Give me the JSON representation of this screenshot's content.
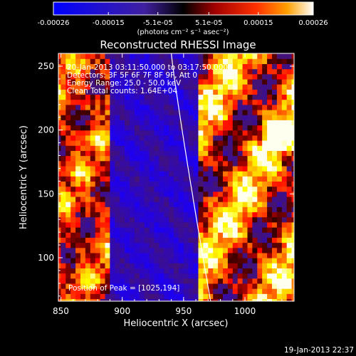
{
  "chart_data": {
    "type": "heatmap",
    "title": "Reconstructed RHESSI Image",
    "xlabel": "Heliocentric X (arcsec)",
    "ylabel": "Heliocentric Y (arcsec)",
    "xlim": [
      848,
      1040
    ],
    "ylim": [
      66,
      260
    ],
    "x_ticks": [
      "850",
      "900",
      "950",
      "1000"
    ],
    "x_tick_values": [
      850,
      900,
      950,
      1000
    ],
    "y_ticks": [
      "100",
      "150",
      "200",
      "250"
    ],
    "y_tick_values": [
      100,
      150,
      200,
      250
    ],
    "colorbar": {
      "min": -0.00026,
      "max": 0.00026,
      "tick_labels": [
        "-0.00026",
        "-0.00015",
        "-5.1e-05",
        "5.1e-05",
        "0.00015",
        "0.00026"
      ],
      "tick_values": [
        -0.00026,
        -0.00015,
        -5.1e-05,
        5.1e-05,
        0.00015,
        0.00026
      ],
      "units_label": "(photons cm⁻² s⁻¹ asec⁻²)"
    },
    "annotations": [
      "20-Jan-2013 03:11:50.000 to 03:17:50.000",
      "Detectors: 3F 5F 6F 7F 8F 9F, Att 0",
      "Energy Range: 25.0 - 50.0 keV",
      "Clean    Total counts: 1.64E+04"
    ],
    "peak_label": "Position of Peak = [1025,194]",
    "peak": [
      1025,
      194
    ],
    "limb_x_range": [
      940,
      972
    ],
    "colors": {
      "negative": "#0000ff",
      "zero": "#000000",
      "positive_mid": "#ff0000",
      "positive_high": "#ffff00",
      "max": "#ffffff"
    }
  },
  "footer_timestamp": "19-Jan-2013 22:37"
}
